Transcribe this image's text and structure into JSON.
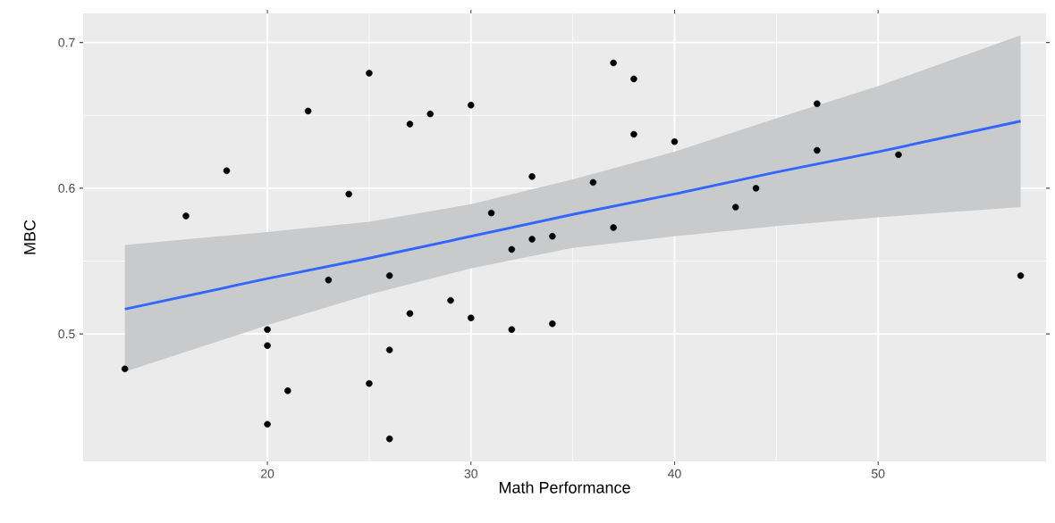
{
  "chart_data": {
    "type": "scatter",
    "xlabel": "Math Performance",
    "ylabel": "MBC",
    "xlim": [
      10.95,
      58.25
    ],
    "ylim": [
      0.4125,
      0.72
    ],
    "xticks": [
      20,
      30,
      40,
      50
    ],
    "yticks": [
      0.5,
      0.6,
      0.7
    ],
    "grid": true,
    "marker": "circle",
    "series": [
      {
        "type": "line",
        "color": "#3366ff",
        "marker": "none",
        "line_style": "solid",
        "x": [
          13,
          20,
          25,
          30,
          35,
          40,
          45,
          50,
          57
        ],
        "values": [
          0.517,
          0.538,
          0.552,
          0.567,
          0.582,
          0.596,
          0.611,
          0.625,
          0.646
        ],
        "lower": [
          0.474,
          0.506,
          0.527,
          0.545,
          0.559,
          0.567,
          0.574,
          0.58,
          0.587
        ],
        "upper": [
          0.561,
          0.57,
          0.577,
          0.589,
          0.606,
          0.625,
          0.648,
          0.67,
          0.705
        ]
      },
      {
        "color": "#000000",
        "x": [
          13,
          16,
          18,
          20,
          20,
          20,
          21,
          22,
          23,
          24,
          25,
          25,
          26,
          26,
          26,
          27,
          27,
          28,
          29,
          30,
          30,
          31,
          32,
          32,
          33,
          33,
          34,
          34,
          36,
          37,
          37,
          38,
          38,
          40,
          43,
          44,
          47,
          47,
          51,
          57
        ],
        "values": [
          0.476,
          0.581,
          0.612,
          0.503,
          0.492,
          0.438,
          0.461,
          0.653,
          0.537,
          0.596,
          0.679,
          0.466,
          0.54,
          0.489,
          0.428,
          0.644,
          0.514,
          0.651,
          0.523,
          0.657,
          0.511,
          0.583,
          0.558,
          0.503,
          0.608,
          0.565,
          0.567,
          0.507,
          0.604,
          0.686,
          0.573,
          0.675,
          0.637,
          0.632,
          0.587,
          0.6,
          0.658,
          0.626,
          0.623,
          0.54
        ]
      }
    ]
  }
}
